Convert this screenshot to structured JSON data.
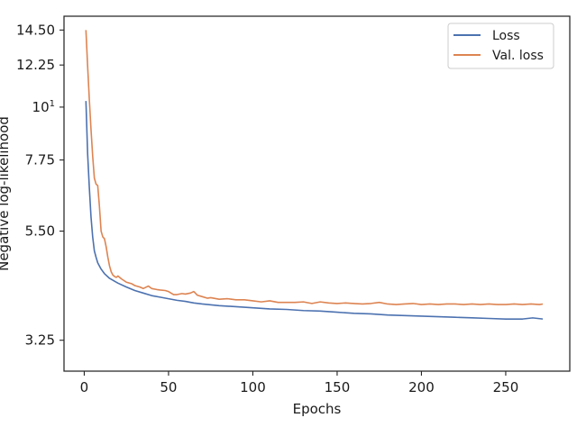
{
  "chart_data": {
    "type": "line",
    "title": "",
    "xlabel": "Epochs",
    "ylabel": "Negative log-likelihood",
    "xlim": [
      -12,
      288
    ],
    "ylim": [
      2.8,
      15.5
    ],
    "y_scale": "log",
    "grid": false,
    "legend_position": "top-right",
    "x_ticks": [
      0,
      50,
      100,
      150,
      200,
      250
    ],
    "x_tick_labels": [
      "0",
      "50",
      "100",
      "150",
      "200",
      "250"
    ],
    "y_ticks": [
      3.25,
      5.5,
      7.75,
      10,
      12.25,
      14.5
    ],
    "y_tick_labels": [
      "3.25",
      "5.50",
      "7.75",
      "10¹",
      "12.25",
      "14.50"
    ],
    "series": [
      {
        "name": "Loss",
        "color": "#4c72b0",
        "points": [
          [
            1,
            10.3
          ],
          [
            2,
            8.0
          ],
          [
            3,
            6.8
          ],
          [
            4,
            5.9
          ],
          [
            5,
            5.35
          ],
          [
            6,
            5.0
          ],
          [
            7,
            4.85
          ],
          [
            8,
            4.72
          ],
          [
            10,
            4.58
          ],
          [
            12,
            4.48
          ],
          [
            15,
            4.38
          ],
          [
            20,
            4.28
          ],
          [
            25,
            4.2
          ],
          [
            30,
            4.13
          ],
          [
            35,
            4.08
          ],
          [
            40,
            4.03
          ],
          [
            45,
            4.0
          ],
          [
            50,
            3.97
          ],
          [
            55,
            3.94
          ],
          [
            60,
            3.92
          ],
          [
            65,
            3.89
          ],
          [
            70,
            3.87
          ],
          [
            80,
            3.84
          ],
          [
            90,
            3.82
          ],
          [
            100,
            3.8
          ],
          [
            110,
            3.78
          ],
          [
            120,
            3.77
          ],
          [
            130,
            3.75
          ],
          [
            140,
            3.74
          ],
          [
            150,
            3.72
          ],
          [
            160,
            3.7
          ],
          [
            170,
            3.69
          ],
          [
            180,
            3.67
          ],
          [
            190,
            3.66
          ],
          [
            200,
            3.65
          ],
          [
            210,
            3.64
          ],
          [
            220,
            3.63
          ],
          [
            230,
            3.62
          ],
          [
            240,
            3.61
          ],
          [
            250,
            3.6
          ],
          [
            260,
            3.6
          ],
          [
            266,
            3.62
          ],
          [
            272,
            3.6
          ]
        ]
      },
      {
        "name": "Val. loss",
        "color": "#dd8452",
        "points": [
          [
            1,
            14.5
          ],
          [
            2,
            12.2
          ],
          [
            3,
            10.4
          ],
          [
            4,
            9.0
          ],
          [
            5,
            7.9
          ],
          [
            6,
            7.1
          ],
          [
            7,
            6.9
          ],
          [
            8,
            6.85
          ],
          [
            9,
            6.2
          ],
          [
            10,
            5.5
          ],
          [
            11,
            5.35
          ],
          [
            12,
            5.3
          ],
          [
            13,
            5.1
          ],
          [
            14,
            4.85
          ],
          [
            15,
            4.65
          ],
          [
            16,
            4.52
          ],
          [
            17,
            4.45
          ],
          [
            18,
            4.42
          ],
          [
            19,
            4.4
          ],
          [
            20,
            4.43
          ],
          [
            22,
            4.37
          ],
          [
            25,
            4.3
          ],
          [
            28,
            4.27
          ],
          [
            30,
            4.23
          ],
          [
            33,
            4.2
          ],
          [
            35,
            4.17
          ],
          [
            38,
            4.22
          ],
          [
            40,
            4.17
          ],
          [
            43,
            4.15
          ],
          [
            45,
            4.14
          ],
          [
            48,
            4.13
          ],
          [
            50,
            4.11
          ],
          [
            53,
            4.05
          ],
          [
            55,
            4.05
          ],
          [
            58,
            4.07
          ],
          [
            60,
            4.06
          ],
          [
            63,
            4.08
          ],
          [
            65,
            4.11
          ],
          [
            67,
            4.04
          ],
          [
            70,
            4.01
          ],
          [
            73,
            3.98
          ],
          [
            75,
            3.99
          ],
          [
            80,
            3.96
          ],
          [
            85,
            3.97
          ],
          [
            90,
            3.95
          ],
          [
            95,
            3.95
          ],
          [
            100,
            3.93
          ],
          [
            105,
            3.91
          ],
          [
            110,
            3.93
          ],
          [
            115,
            3.9
          ],
          [
            120,
            3.9
          ],
          [
            125,
            3.9
          ],
          [
            130,
            3.91
          ],
          [
            135,
            3.88
          ],
          [
            140,
            3.91
          ],
          [
            145,
            3.89
          ],
          [
            150,
            3.88
          ],
          [
            155,
            3.89
          ],
          [
            160,
            3.88
          ],
          [
            165,
            3.87
          ],
          [
            170,
            3.88
          ],
          [
            175,
            3.9
          ],
          [
            180,
            3.87
          ],
          [
            185,
            3.86
          ],
          [
            190,
            3.87
          ],
          [
            195,
            3.88
          ],
          [
            200,
            3.86
          ],
          [
            205,
            3.87
          ],
          [
            210,
            3.86
          ],
          [
            215,
            3.87
          ],
          [
            220,
            3.87
          ],
          [
            225,
            3.86
          ],
          [
            230,
            3.87
          ],
          [
            235,
            3.86
          ],
          [
            240,
            3.87
          ],
          [
            245,
            3.86
          ],
          [
            250,
            3.86
          ],
          [
            255,
            3.87
          ],
          [
            260,
            3.86
          ],
          [
            265,
            3.87
          ],
          [
            270,
            3.86
          ],
          [
            272,
            3.87
          ]
        ]
      }
    ]
  }
}
